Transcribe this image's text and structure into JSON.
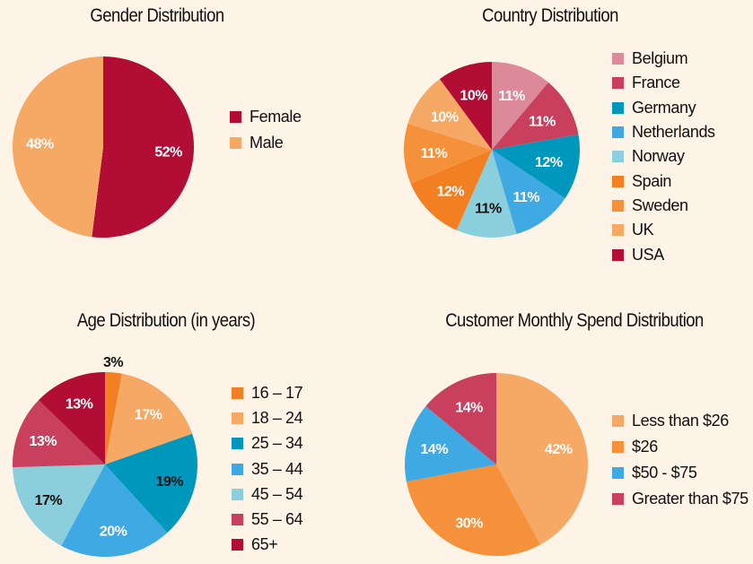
{
  "chart_data": [
    {
      "type": "pie",
      "title": "Gender Distribution",
      "categories": [
        "Female",
        "Male"
      ],
      "values": [
        52,
        48
      ],
      "labels": [
        "52%",
        "48%"
      ],
      "colors": [
        "#b20d35",
        "#f6a865"
      ],
      "label_colors": [
        "#ffffff",
        "#ffffff"
      ],
      "legend": "right"
    },
    {
      "type": "pie",
      "title": "Country Distribution",
      "categories": [
        "Belgium",
        "France",
        "Germany",
        "Netherlands",
        "Norway",
        "Spain",
        "Sweden",
        "UK",
        "USA"
      ],
      "values": [
        11,
        11,
        12,
        11,
        11,
        12,
        11,
        10,
        10
      ],
      "labels": [
        "11%",
        "11%",
        "12%",
        "11%",
        "11%",
        "12%",
        "11%",
        "10%",
        "10%"
      ],
      "colors": [
        "#dc8a99",
        "#c9405f",
        "#0097bd",
        "#3ea9e2",
        "#8ccfdc",
        "#f27f22",
        "#f5913b",
        "#f6a865",
        "#b20d35"
      ],
      "label_colors": [
        "#ffffff",
        "#ffffff",
        "#ffffff",
        "#ffffff",
        "#111111",
        "#ffffff",
        "#ffffff",
        "#ffffff",
        "#ffffff"
      ],
      "legend": "right"
    },
    {
      "type": "pie",
      "title": "Age Distribution (in years)",
      "categories": [
        "16 – 17",
        "18 – 24",
        "25 – 34",
        "35 – 44",
        "45 – 54",
        "55 – 64",
        "65+"
      ],
      "values": [
        3,
        17,
        19,
        20,
        17,
        13,
        13
      ],
      "labels": [
        "3%",
        "17%",
        "19%",
        "20%",
        "17%",
        "13%",
        "13%"
      ],
      "colors": [
        "#f27f22",
        "#f6a865",
        "#0097bd",
        "#3ea9e2",
        "#8ccfdc",
        "#c9405f",
        "#b20d35"
      ],
      "label_colors": [
        "#111111",
        "#ffffff",
        "#111111",
        "#ffffff",
        "#111111",
        "#ffffff",
        "#ffffff"
      ],
      "legend": "right"
    },
    {
      "type": "pie",
      "title": "Customer Monthly Spend Distribution",
      "categories": [
        "Less than $26",
        "$26",
        "$50 - $75",
        "Greater than $75"
      ],
      "values": [
        42,
        30,
        14,
        14
      ],
      "labels": [
        "42%",
        "30%",
        "14%",
        "14%"
      ],
      "colors": [
        "#f6a865",
        "#f5913b",
        "#3ea9e2",
        "#c9405f"
      ],
      "label_colors": [
        "#ffffff",
        "#ffffff",
        "#ffffff",
        "#ffffff"
      ],
      "legend": "right"
    }
  ]
}
